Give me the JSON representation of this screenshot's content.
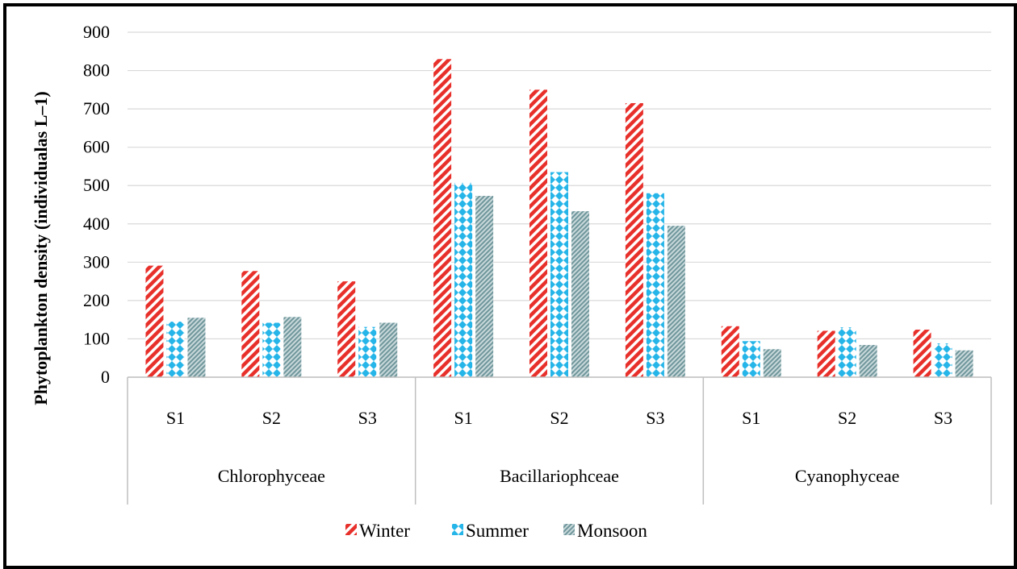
{
  "chart_data": {
    "type": "bar",
    "title": "",
    "ylabel": "Phytoplankton density (individualas L–1)",
    "xlabel": "",
    "ylim": [
      0,
      900
    ],
    "yticks": [
      0,
      100,
      200,
      300,
      400,
      500,
      600,
      700,
      800,
      900
    ],
    "grid": true,
    "legend_position": "bottom",
    "groups": [
      {
        "label": "Chlorophyceae",
        "sites": [
          "S1",
          "S2",
          "S3"
        ]
      },
      {
        "label": "Bacillariophceae",
        "sites": [
          "S1",
          "S2",
          "S3"
        ]
      },
      {
        "label": "Cyanophyceae",
        "sites": [
          "S1",
          "S2",
          "S3"
        ]
      }
    ],
    "series": [
      {
        "name": "Winter",
        "color": "#e8302b",
        "pattern": "diagonal-stripes",
        "values": [
          291,
          277,
          250,
          830,
          750,
          715,
          133,
          121,
          124
        ]
      },
      {
        "name": "Summer",
        "color": "#26b5e8",
        "pattern": "diamond-check",
        "values": [
          145,
          142,
          131,
          507,
          535,
          480,
          94,
          130,
          88
        ]
      },
      {
        "name": "Monsoon",
        "color": "#7a9ea3",
        "pattern": "fine-hatch",
        "values": [
          155,
          157,
          142,
          473,
          433,
          395,
          73,
          84,
          70
        ]
      }
    ]
  }
}
